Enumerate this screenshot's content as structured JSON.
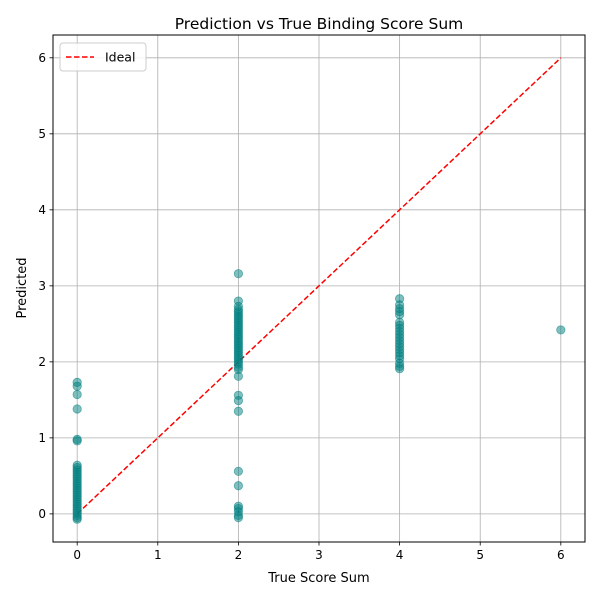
{
  "chart_data": {
    "type": "scatter",
    "title": "Prediction vs True Binding Score Sum",
    "xlabel": "True Score Sum",
    "ylabel": "Predicted",
    "xlim": [
      -0.3,
      6.3
    ],
    "ylim": [
      -0.37,
      6.3
    ],
    "xticks": [
      0,
      1,
      2,
      3,
      4,
      5,
      6
    ],
    "yticks": [
      0,
      1,
      2,
      3,
      4,
      5,
      6
    ],
    "grid": true,
    "legend_position": "top-left",
    "colors": {
      "points": "#008080",
      "ideal": "#ff0000"
    },
    "series": [
      {
        "kind": "scatter",
        "points": [
          [
            0,
            1.73
          ],
          [
            0,
            1.68
          ],
          [
            0,
            1.57
          ],
          [
            0,
            1.38
          ],
          [
            0,
            0.98
          ],
          [
            0,
            0.96
          ],
          [
            0,
            0.64
          ],
          [
            0,
            0.61
          ],
          [
            0,
            0.58
          ],
          [
            0,
            0.55
          ],
          [
            0,
            0.52
          ],
          [
            0,
            0.49
          ],
          [
            0,
            0.46
          ],
          [
            0,
            0.43
          ],
          [
            0,
            0.4
          ],
          [
            0,
            0.37
          ],
          [
            0,
            0.34
          ],
          [
            0,
            0.31
          ],
          [
            0,
            0.28
          ],
          [
            0,
            0.25
          ],
          [
            0,
            0.22
          ],
          [
            0,
            0.19
          ],
          [
            0,
            0.16
          ],
          [
            0,
            0.13
          ],
          [
            0,
            0.1
          ],
          [
            0,
            0.07
          ],
          [
            0,
            0.04
          ],
          [
            0,
            0.01
          ],
          [
            0,
            -0.02
          ],
          [
            0,
            -0.05
          ],
          [
            0,
            -0.07
          ],
          [
            2,
            3.16
          ],
          [
            2,
            2.8
          ],
          [
            2,
            2.73
          ],
          [
            2,
            2.69
          ],
          [
            2,
            2.66
          ],
          [
            2,
            2.63
          ],
          [
            2,
            2.6
          ],
          [
            2,
            2.57
          ],
          [
            2,
            2.54
          ],
          [
            2,
            2.51
          ],
          [
            2,
            2.48
          ],
          [
            2,
            2.45
          ],
          [
            2,
            2.42
          ],
          [
            2,
            2.39
          ],
          [
            2,
            2.36
          ],
          [
            2,
            2.33
          ],
          [
            2,
            2.3
          ],
          [
            2,
            2.27
          ],
          [
            2,
            2.24
          ],
          [
            2,
            2.21
          ],
          [
            2,
            2.18
          ],
          [
            2,
            2.15
          ],
          [
            2,
            2.12
          ],
          [
            2,
            2.09
          ],
          [
            2,
            2.06
          ],
          [
            2,
            2.03
          ],
          [
            2,
            2.0
          ],
          [
            2,
            1.97
          ],
          [
            2,
            1.93
          ],
          [
            2,
            1.9
          ],
          [
            2,
            1.81
          ],
          [
            2,
            1.56
          ],
          [
            2,
            1.49
          ],
          [
            2,
            1.35
          ],
          [
            2,
            0.56
          ],
          [
            2,
            0.37
          ],
          [
            2,
            0.1
          ],
          [
            2,
            0.07
          ],
          [
            2,
            0.03
          ],
          [
            2,
            -0.02
          ],
          [
            2,
            -0.05
          ],
          [
            4,
            2.83
          ],
          [
            4,
            2.75
          ],
          [
            4,
            2.7
          ],
          [
            4,
            2.66
          ],
          [
            4,
            2.62
          ],
          [
            4,
            2.52
          ],
          [
            4,
            2.48
          ],
          [
            4,
            2.44
          ],
          [
            4,
            2.4
          ],
          [
            4,
            2.36
          ],
          [
            4,
            2.32
          ],
          [
            4,
            2.28
          ],
          [
            4,
            2.24
          ],
          [
            4,
            2.2
          ],
          [
            4,
            2.16
          ],
          [
            4,
            2.12
          ],
          [
            4,
            2.08
          ],
          [
            4,
            2.04
          ],
          [
            4,
            1.98
          ],
          [
            4,
            1.94
          ],
          [
            4,
            1.91
          ],
          [
            6,
            2.42
          ]
        ]
      },
      {
        "kind": "line",
        "name": "Ideal",
        "style": "dashed",
        "points": [
          [
            0,
            0
          ],
          [
            6,
            6
          ]
        ]
      }
    ]
  }
}
